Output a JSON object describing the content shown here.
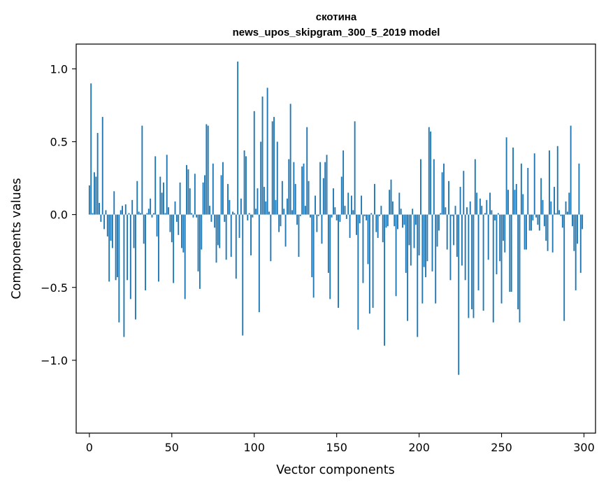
{
  "chart_data": {
    "type": "bar",
    "title": "скотина",
    "subtitle": "news_upos_skipgram_300_5_2019 model",
    "xlabel": "Vector components",
    "ylabel": "Components values",
    "xlim": [
      -8,
      307
    ],
    "ylim": [
      -1.5,
      1.17
    ],
    "xticks": [
      0,
      50,
      100,
      150,
      200,
      250,
      300
    ],
    "xtick_labels": [
      "0",
      "50",
      "100",
      "150",
      "200",
      "250",
      "300"
    ],
    "yticks": [
      -1.0,
      -0.5,
      0.0,
      0.5,
      1.0
    ],
    "ytick_labels": [
      "−1.0",
      "−0.5",
      "0.0",
      "0.5",
      "1.0"
    ],
    "bar_color": "#1f77b4",
    "series": [
      {
        "name": "components",
        "values": [
          0.2,
          0.9,
          0.01,
          0.29,
          0.26,
          0.56,
          0.08,
          -0.05,
          0.67,
          -0.1,
          0.03,
          -0.15,
          -0.46,
          -0.18,
          -0.23,
          0.16,
          -0.45,
          -0.43,
          -0.74,
          0.03,
          0.06,
          -0.84,
          0.07,
          -0.45,
          0.01,
          -0.58,
          0.1,
          -0.23,
          -0.72,
          0.23,
          0.02,
          0.01,
          0.61,
          -0.2,
          -0.52,
          0.01,
          0.04,
          0.11,
          -0.02,
          0.01,
          0.4,
          -0.15,
          -0.46,
          0.26,
          0.15,
          0.22,
          0.01,
          0.41,
          0.05,
          -0.12,
          -0.19,
          -0.47,
          0.09,
          -0.05,
          -0.14,
          0.22,
          -0.23,
          -0.26,
          -0.58,
          0.34,
          0.31,
          0.18,
          0.01,
          -0.02,
          0.28,
          -0.02,
          -0.39,
          -0.51,
          -0.24,
          0.22,
          0.27,
          0.62,
          0.61,
          0.06,
          -0.05,
          0.35,
          -0.09,
          -0.33,
          -0.21,
          -0.23,
          0.27,
          0.36,
          -0.05,
          -0.31,
          0.21,
          0.1,
          -0.29,
          0.02,
          0.01,
          -0.44,
          1.05,
          -0.16,
          0.11,
          -0.83,
          0.44,
          0.4,
          -0.04,
          0.01,
          -0.28,
          -0.02,
          0.71,
          0.04,
          0.18,
          -0.67,
          0.5,
          0.81,
          0.19,
          0.09,
          0.87,
          0.02,
          -0.32,
          0.64,
          0.67,
          0.1,
          0.5,
          -0.12,
          -0.08,
          0.23,
          0.04,
          -0.22,
          0.11,
          0.38,
          0.76,
          0.03,
          0.36,
          0.21,
          -0.07,
          -0.29,
          -0.01,
          0.33,
          0.35,
          0.06,
          0.6,
          0.23,
          -0.02,
          -0.43,
          -0.57,
          0.13,
          -0.12,
          -0.01,
          0.36,
          -0.2,
          0.25,
          0.36,
          0.41,
          -0.4,
          -0.58,
          -0.02,
          0.18,
          0.05,
          -0.04,
          -0.64,
          -0.05,
          0.26,
          0.44,
          0.06,
          -0.03,
          0.15,
          -0.16,
          0.13,
          0.03,
          0.64,
          -0.14,
          -0.79,
          -0.06,
          0.13,
          -0.47,
          -0.01,
          -0.04,
          -0.34,
          -0.68,
          0.01,
          -0.64,
          0.21,
          -0.12,
          -0.16,
          -0.01,
          0.06,
          -0.19,
          -0.9,
          -0.09,
          -0.08,
          0.17,
          0.24,
          0.09,
          -0.08,
          -0.56,
          -0.1,
          0.15,
          0.04,
          -0.09,
          -0.07,
          -0.4,
          -0.73,
          -0.21,
          -0.35,
          0.04,
          -0.23,
          -0.07,
          -0.84,
          -0.28,
          0.38,
          -0.61,
          -0.36,
          -0.43,
          -0.32,
          0.6,
          0.57,
          -0.39,
          0.38,
          -0.61,
          -0.22,
          -0.11,
          0.01,
          0.29,
          0.35,
          0.05,
          -0.24,
          0.23,
          -0.45,
          -0.01,
          -0.21,
          0.06,
          -0.29,
          -1.1,
          0.19,
          -0.35,
          0.3,
          -0.45,
          0.05,
          -0.71,
          0.09,
          -0.65,
          -0.71,
          0.38,
          0.15,
          -0.52,
          0.11,
          0.06,
          -0.66,
          0.01,
          0.1,
          -0.31,
          0.15,
          0.03,
          -0.74,
          -0.04,
          -0.41,
          0.01,
          -0.32,
          -0.61,
          -0.18,
          -0.26,
          0.53,
          0.17,
          -0.53,
          -0.53,
          0.46,
          0.17,
          0.21,
          -0.65,
          -0.74,
          0.35,
          0.14,
          -0.24,
          -0.24,
          0.32,
          -0.11,
          -0.11,
          -0.04,
          0.42,
          -0.02,
          -0.07,
          -0.11,
          0.25,
          0.1,
          -0.08,
          -0.18,
          -0.25,
          0.44,
          0.09,
          -0.26,
          0.19,
          0.01,
          0.47,
          0.03,
          -0.01,
          -0.09,
          -0.73,
          0.09,
          0.02,
          0.15,
          0.61,
          -0.08,
          -0.25,
          -0.52,
          -0.2,
          0.35,
          -0.4,
          -0.1
        ]
      }
    ]
  }
}
